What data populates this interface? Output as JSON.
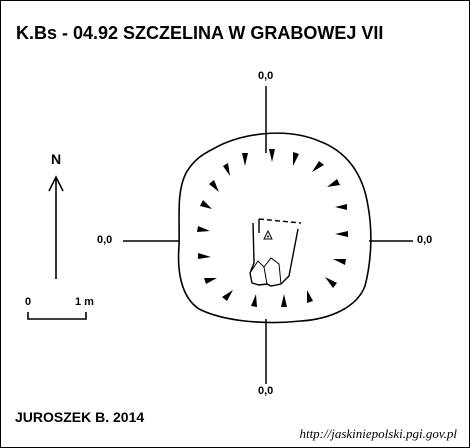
{
  "title": "K.Bs - 04.92  SZCZELINA W GRABOWEJ VII",
  "elevations": {
    "top": "0,0",
    "bottom": "0,0",
    "left": "0,0",
    "right": "0,0"
  },
  "north_label": "N",
  "scale_bar": {
    "start_label": "0",
    "end_label": "1 m"
  },
  "author": "JUROSZEK B. 2014",
  "source": "http://jaskiniepolski.pgi.gov.pl",
  "icons": [
    "north-arrow-icon",
    "survey-station-triangle-icon"
  ],
  "colors": {
    "ink": "#000000",
    "background": "#ffffff"
  }
}
